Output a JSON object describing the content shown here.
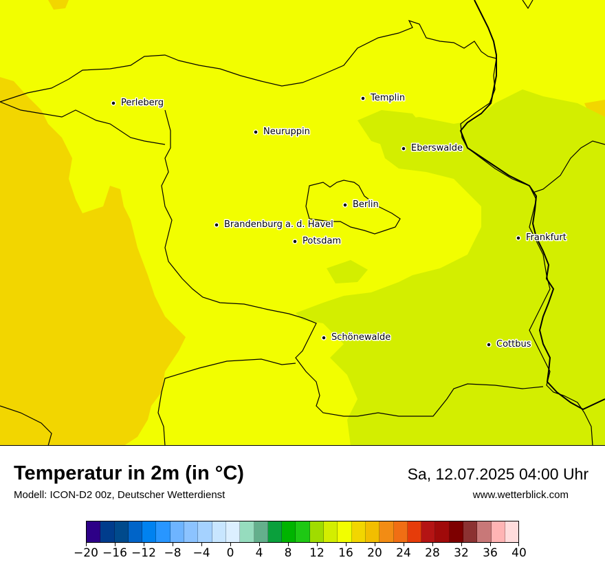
{
  "title": "Temperatur in 2m (in °C)",
  "subtitle": "Modell: ICON-D2 00z, Deutscher Wetterdienst",
  "datetime": "Sa, 12.07.2025 04:00 Uhr",
  "website": "www.wetterblick.com",
  "colors": {
    "t_16_18": "#f2fe00",
    "t_14_16": "#d3ee00",
    "t_18_20": "#f2d600",
    "border": "#000000"
  },
  "cities": [
    {
      "name": "Perleberg"
    },
    {
      "name": "Neuruppin"
    },
    {
      "name": "Templin"
    },
    {
      "name": "Eberswalde"
    },
    {
      "name": "Berlin"
    },
    {
      "name": "Brandenburg a. d. Havel"
    },
    {
      "name": "Potsdam"
    },
    {
      "name": "Frankfurt"
    },
    {
      "name": "Schönewalde"
    },
    {
      "name": "Cottbus"
    }
  ],
  "legend": {
    "ticks": [
      "−20",
      "−16",
      "−12",
      "−8",
      "−4",
      "0",
      "4",
      "8",
      "12",
      "16",
      "20",
      "24",
      "28",
      "32",
      "36",
      "40"
    ],
    "colors": [
      "#2d0087",
      "#003c8c",
      "#004a8c",
      "#0064c8",
      "#0082f0",
      "#2896ff",
      "#6eb4ff",
      "#8cc3ff",
      "#a5d2ff",
      "#c8e6ff",
      "#dcefff",
      "#96dcbe",
      "#64af8c",
      "#0aa03c",
      "#00b400",
      "#1ec814",
      "#a0dc00",
      "#d3ee00",
      "#f2fe00",
      "#f2d600",
      "#f2be00",
      "#f28c14",
      "#f06e14",
      "#e63c0a",
      "#b41414",
      "#a00a0a",
      "#7d0000",
      "#8c3232",
      "#c87878",
      "#ffb4b4",
      "#ffdcdc"
    ]
  }
}
